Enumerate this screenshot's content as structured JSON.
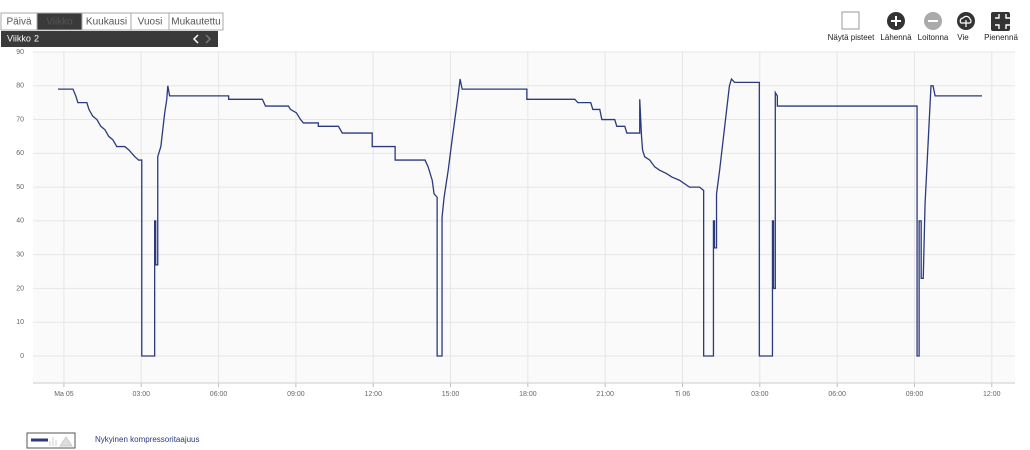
{
  "tabs": [
    "Päivä",
    "Viikko",
    "Kuukausi",
    "Vuosi",
    "Mukautettu"
  ],
  "period": {
    "label": "Viikko",
    "number": 2
  },
  "toolbar": [
    "Näytä pisteet",
    "Lähennä",
    "Loitonna",
    "Vie",
    "Pienennä"
  ],
  "chart_data": {
    "type": "line",
    "x": [
      -0.23,
      0.35,
      0.46,
      0.54,
      0.89,
      0.97,
      1.12,
      1.28,
      1.43,
      1.59,
      1.74,
      1.9,
      2.05,
      2.36,
      2.52,
      2.75,
      2.9,
      3.02,
      3.02,
      3.52,
      3.52,
      3.56,
      3.56,
      3.64,
      3.64,
      3.76,
      3.91,
      3.99,
      4.03,
      4.1,
      6.39,
      6.39,
      7.7,
      7.82,
      8.71,
      8.79,
      9.02,
      9.18,
      9.29,
      9.87,
      9.87,
      10.65,
      10.8,
      11.96,
      11.96,
      12.85,
      12.85,
      14.01,
      14.13,
      14.29,
      14.36,
      14.48,
      14.48,
      14.67,
      14.67,
      14.75,
      14.91,
      15.06,
      15.29,
      15.37,
      15.45,
      17.96,
      17.96,
      19.82,
      19.94,
      20.44,
      20.52,
      20.79,
      20.87,
      21.37,
      21.45,
      21.76,
      21.84,
      22.34,
      22.34,
      22.41,
      22.45,
      22.53,
      22.73,
      22.92,
      23.11,
      23.38,
      23.58,
      23.89,
      24.27,
      24.66,
      24.82,
      24.82,
      25.2,
      25.2,
      25.24,
      25.24,
      25.32,
      25.32,
      25.44,
      25.82,
      25.9,
      26.02,
      26.98,
      26.98,
      27.49,
      27.49,
      27.53,
      27.53,
      27.6,
      27.6,
      27.68,
      27.68,
      33.1,
      33.1,
      33.18,
      33.18,
      33.26,
      33.26,
      33.34,
      33.41,
      33.64,
      33.72,
      33.8,
      35.62
    ],
    "series": [
      {
        "name": "Nykyinen kompressoritaajuus",
        "color": "#2b3a7e",
        "values": [
          79,
          79,
          77,
          75,
          75,
          73,
          71,
          70,
          68,
          67,
          65,
          64,
          62,
          62,
          61,
          59,
          58,
          58,
          0,
          0,
          40,
          40,
          27,
          27,
          59,
          62,
          72,
          76,
          80,
          77,
          77,
          76,
          76,
          74,
          74,
          73,
          72,
          70,
          69,
          69,
          68,
          68,
          66,
          66,
          62,
          62,
          58,
          58,
          56,
          52,
          48,
          47,
          0,
          0,
          41,
          47,
          55,
          64,
          77,
          82,
          79,
          79,
          76,
          76,
          75,
          75,
          73,
          73,
          70,
          70,
          68,
          68,
          66,
          66,
          76,
          65,
          61,
          59,
          58,
          56,
          55,
          54,
          53,
          52,
          50,
          50,
          49,
          0,
          0,
          40,
          40,
          32,
          32,
          48,
          55,
          80,
          82,
          81,
          81,
          0,
          0,
          40,
          40,
          20,
          20,
          78,
          77,
          74,
          74,
          0,
          0,
          40,
          40,
          23,
          23,
          45,
          80,
          80,
          77,
          77
        ]
      }
    ],
    "xlim": [
      -1.2,
      36.9
    ],
    "xticks": [
      {
        "value": 0,
        "label": "Ma 05"
      },
      {
        "value": 3,
        "label": "03:00"
      },
      {
        "value": 6,
        "label": "06:00"
      },
      {
        "value": 9,
        "label": "09:00"
      },
      {
        "value": 12,
        "label": "12:00"
      },
      {
        "value": 15,
        "label": "15:00"
      },
      {
        "value": 18,
        "label": "18:00"
      },
      {
        "value": 21,
        "label": "21:00"
      },
      {
        "value": 24,
        "label": "Ti 06"
      },
      {
        "value": 27,
        "label": "03:00"
      },
      {
        "value": 30,
        "label": "06:00"
      },
      {
        "value": 33,
        "label": "09:00"
      },
      {
        "value": 36,
        "label": "12:00"
      }
    ],
    "ylim": [
      -8,
      90
    ],
    "yticks": [
      0,
      10,
      20,
      30,
      40,
      50,
      60,
      70,
      80,
      90
    ],
    "grid": true
  }
}
